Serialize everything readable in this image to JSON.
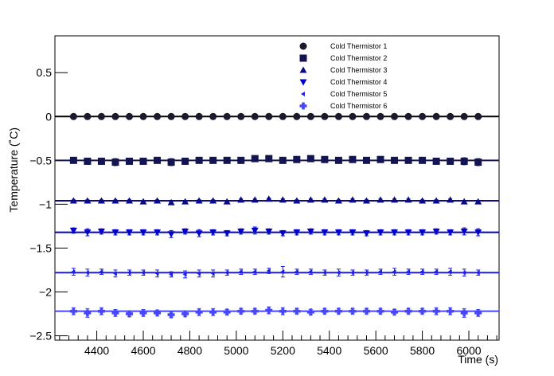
{
  "chart_data": {
    "type": "scatter",
    "xlabel": "Time (s)",
    "ylabel": "Temperature (˚C)",
    "xlim": [
      4220,
      6130
    ],
    "ylim": [
      -2.55,
      0.92
    ],
    "x_ticks": [
      4400,
      4600,
      4800,
      5000,
      5200,
      5400,
      5600,
      5800,
      6000
    ],
    "x_tick_labels": [
      "4400",
      "4600",
      "4800",
      "5000",
      "5200",
      "5400",
      "5600",
      "5800",
      "6000"
    ],
    "y_ticks": [
      0.5,
      0,
      -0.5,
      -1,
      -1.5,
      -2,
      -2.5
    ],
    "y_tick_labels": [
      "0.5",
      "0",
      "−0.5",
      "−1",
      "−1.5",
      "−2",
      "−2.5"
    ],
    "grid": false,
    "legend_position": "top-right",
    "x": [
      4300,
      4360,
      4420,
      4480,
      4540,
      4600,
      4660,
      4720,
      4780,
      4840,
      4900,
      4960,
      5020,
      5080,
      5140,
      5200,
      5260,
      5320,
      5380,
      5440,
      5500,
      5560,
      5620,
      5680,
      5740,
      5800,
      5860,
      5920,
      5980,
      6040
    ],
    "series": [
      {
        "name": "Cold Thermistor 1",
        "marker": "circle",
        "color": "#1a1a2e",
        "fit": 0.0,
        "values": [
          0,
          0,
          0,
          0,
          0,
          0,
          0,
          0,
          0,
          0,
          0,
          0,
          0,
          0,
          0,
          0,
          0,
          0,
          0,
          0,
          0,
          0,
          0,
          0,
          0,
          0,
          0,
          0,
          0,
          0
        ],
        "errors": [
          0.01,
          0.01,
          0.01,
          0.01,
          0.01,
          0.01,
          0.01,
          0.01,
          0.01,
          0.01,
          0.01,
          0.01,
          0.01,
          0.01,
          0.01,
          0.01,
          0.01,
          0.01,
          0.01,
          0.01,
          0.01,
          0.01,
          0.01,
          0.01,
          0.01,
          0.01,
          0.01,
          0.01,
          0.01,
          0.01
        ]
      },
      {
        "name": "Cold Thermistor 2",
        "marker": "square",
        "color": "#141452",
        "fit": -0.5,
        "values": [
          -0.5,
          -0.51,
          -0.51,
          -0.52,
          -0.51,
          -0.51,
          -0.5,
          -0.52,
          -0.51,
          -0.5,
          -0.5,
          -0.5,
          -0.5,
          -0.48,
          -0.48,
          -0.5,
          -0.49,
          -0.48,
          -0.49,
          -0.5,
          -0.49,
          -0.5,
          -0.49,
          -0.5,
          -0.5,
          -0.5,
          -0.51,
          -0.51,
          -0.51,
          -0.52
        ],
        "errors": [
          0.03,
          0.03,
          0.03,
          0.04,
          0.03,
          0.03,
          0.03,
          0.04,
          0.03,
          0.03,
          0.03,
          0.03,
          0.03,
          0.03,
          0.03,
          0.03,
          0.03,
          0.03,
          0.03,
          0.03,
          0.03,
          0.03,
          0.03,
          0.03,
          0.03,
          0.03,
          0.03,
          0.03,
          0.04,
          0.04
        ]
      },
      {
        "name": "Cold Thermistor 3",
        "marker": "triangle-up",
        "color": "#0a0a8c",
        "fit": -0.96,
        "values": [
          -0.96,
          -0.96,
          -0.96,
          -0.96,
          -0.96,
          -0.97,
          -0.96,
          -0.98,
          -0.97,
          -0.96,
          -0.96,
          -0.97,
          -0.95,
          -0.95,
          -0.94,
          -0.95,
          -0.96,
          -0.95,
          -0.95,
          -0.96,
          -0.95,
          -0.96,
          -0.95,
          -0.95,
          -0.95,
          -0.96,
          -0.96,
          -0.95,
          -0.97,
          -0.97
        ],
        "errors": [
          0.01,
          0.01,
          0.01,
          0.01,
          0.01,
          0.01,
          0.01,
          0.01,
          0.01,
          0.01,
          0.01,
          0.01,
          0.01,
          0.01,
          0.01,
          0.01,
          0.01,
          0.01,
          0.01,
          0.01,
          0.01,
          0.01,
          0.01,
          0.01,
          0.01,
          0.01,
          0.01,
          0.01,
          0.01,
          0.01
        ]
      },
      {
        "name": "Cold Thermistor 4",
        "marker": "triangle-down",
        "color": "#0000c8",
        "fit": -1.32,
        "values": [
          -1.3,
          -1.32,
          -1.31,
          -1.32,
          -1.32,
          -1.32,
          -1.32,
          -1.34,
          -1.31,
          -1.33,
          -1.32,
          -1.33,
          -1.31,
          -1.3,
          -1.31,
          -1.33,
          -1.32,
          -1.31,
          -1.32,
          -1.32,
          -1.32,
          -1.33,
          -1.32,
          -1.32,
          -1.32,
          -1.32,
          -1.31,
          -1.32,
          -1.31,
          -1.32
        ],
        "errors": [
          0.03,
          0.04,
          0.03,
          0.03,
          0.03,
          0.03,
          0.03,
          0.04,
          0.03,
          0.04,
          0.03,
          0.03,
          0.03,
          0.04,
          0.03,
          0.03,
          0.03,
          0.03,
          0.03,
          0.03,
          0.03,
          0.03,
          0.03,
          0.03,
          0.03,
          0.03,
          0.03,
          0.03,
          0.04,
          0.04
        ]
      },
      {
        "name": "Cold Thermistor 5",
        "marker": "triangle-left",
        "color": "#1e1ee6",
        "fit": -1.78,
        "values": [
          -1.77,
          -1.78,
          -1.77,
          -1.79,
          -1.78,
          -1.78,
          -1.79,
          -1.8,
          -1.8,
          -1.79,
          -1.79,
          -1.78,
          -1.77,
          -1.77,
          -1.76,
          -1.77,
          -1.77,
          -1.77,
          -1.78,
          -1.78,
          -1.78,
          -1.78,
          -1.77,
          -1.77,
          -1.77,
          -1.77,
          -1.77,
          -1.77,
          -1.78,
          -1.78
        ],
        "errors": [
          0.04,
          0.04,
          0.03,
          0.04,
          0.03,
          0.03,
          0.04,
          0.03,
          0.04,
          0.04,
          0.04,
          0.03,
          0.03,
          0.03,
          0.03,
          0.06,
          0.03,
          0.03,
          0.03,
          0.04,
          0.03,
          0.03,
          0.03,
          0.04,
          0.03,
          0.03,
          0.03,
          0.04,
          0.04,
          0.03
        ]
      },
      {
        "name": "Cold Thermistor 6",
        "marker": "cross",
        "color": "#4646ff",
        "fit": -2.22,
        "values": [
          -2.22,
          -2.24,
          -2.22,
          -2.24,
          -2.25,
          -2.24,
          -2.24,
          -2.26,
          -2.25,
          -2.23,
          -2.23,
          -2.23,
          -2.22,
          -2.22,
          -2.21,
          -2.22,
          -2.22,
          -2.23,
          -2.22,
          -2.22,
          -2.22,
          -2.22,
          -2.22,
          -2.23,
          -2.22,
          -2.22,
          -2.22,
          -2.22,
          -2.24,
          -2.24
        ],
        "errors": [
          0.04,
          0.05,
          0.04,
          0.04,
          0.03,
          0.04,
          0.03,
          0.03,
          0.03,
          0.04,
          0.04,
          0.03,
          0.03,
          0.03,
          0.04,
          0.04,
          0.03,
          0.03,
          0.03,
          0.03,
          0.03,
          0.03,
          0.03,
          0.03,
          0.03,
          0.03,
          0.04,
          0.04,
          0.05,
          0.04
        ]
      }
    ]
  }
}
